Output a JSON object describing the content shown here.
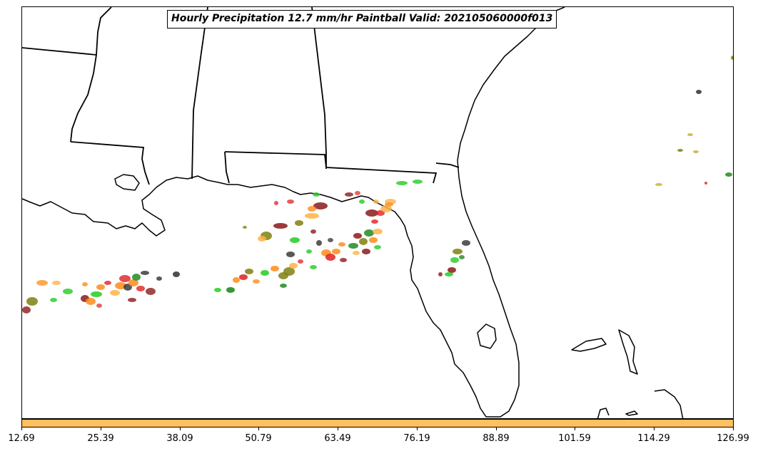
{
  "title": "Hourly Precipitation 12.7 mm/hr Paintball Valid: 202105060000f013",
  "colorbar": {
    "color": "#ffc060",
    "ticks": [
      "12.69",
      "25.39",
      "38.09",
      "50.79",
      "63.49",
      "76.19",
      "88.89",
      "101.59",
      "114.29",
      "126.99"
    ]
  },
  "map": {
    "region": "Southeastern United States and Gulf of Mexico",
    "features": [
      "coastlines",
      "state-borders"
    ],
    "paintball_colors": [
      "#ff8c1a",
      "#22cc22",
      "#e02020",
      "#8b1a1a",
      "#808010",
      "#228b22",
      "#303030",
      "#c8b040",
      "#ffb347"
    ]
  }
}
